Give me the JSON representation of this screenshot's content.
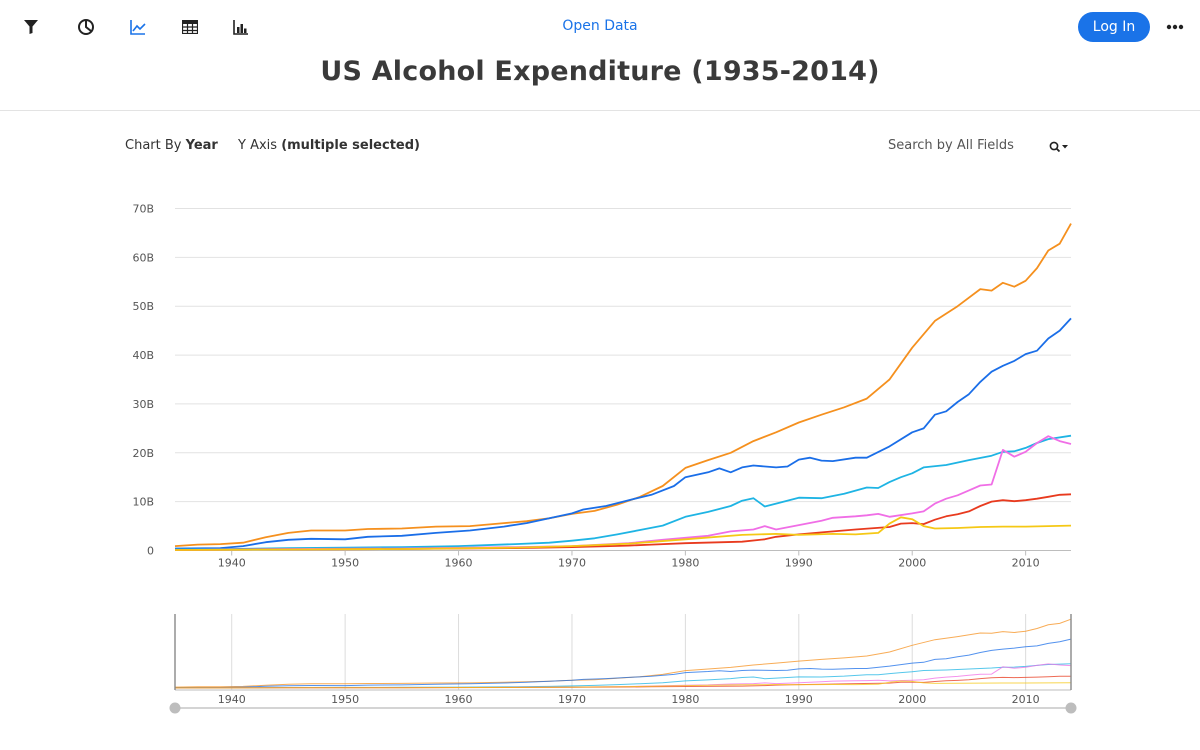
{
  "header": {
    "open_data_label": "Open Data",
    "login_label": "Log In",
    "title": "US Alcohol Expenditure (1935-2014)"
  },
  "toolbar": {
    "icons": [
      "filter-icon",
      "pie-chart-icon",
      "line-chart-icon",
      "table-icon",
      "bar-chart-icon"
    ],
    "active": "line-chart-icon",
    "accent": "#1a73e8"
  },
  "controls": {
    "chart_by_prefix": "Chart By",
    "chart_by_value": "Year",
    "y_axis_prefix": "Y Axis",
    "y_axis_value": "(multiple selected)",
    "search_placeholder": "Search by All Fields"
  },
  "chart_data": {
    "type": "line",
    "title": "US Alcohol Expenditure (1935-2014)",
    "xlabel": "",
    "ylabel": "",
    "x_ticks": [
      1940,
      1950,
      1960,
      1970,
      1980,
      1990,
      2000,
      2010
    ],
    "y_ticks": [
      "0",
      "10B",
      "20B",
      "30B",
      "40B",
      "50B",
      "60B",
      "70B"
    ],
    "xlim": [
      1935,
      2014
    ],
    "ylim": [
      0,
      70
    ],
    "y_unit": "billions",
    "grid": "horizontal",
    "legend": "none",
    "series": [
      {
        "color": "#f5901e",
        "points": [
          [
            1935,
            0.9
          ],
          [
            1937,
            1.2
          ],
          [
            1939,
            1.3
          ],
          [
            1941,
            1.6
          ],
          [
            1943,
            2.7
          ],
          [
            1945,
            3.6
          ],
          [
            1947,
            4.1
          ],
          [
            1950,
            4.1
          ],
          [
            1952,
            4.4
          ],
          [
            1955,
            4.5
          ],
          [
            1958,
            4.9
          ],
          [
            1961,
            5.0
          ],
          [
            1964,
            5.6
          ],
          [
            1966,
            6.0
          ],
          [
            1968,
            6.6
          ],
          [
            1970,
            7.5
          ],
          [
            1972,
            8.1
          ],
          [
            1974,
            9.4
          ],
          [
            1976,
            11.0
          ],
          [
            1978,
            13.2
          ],
          [
            1980,
            16.9
          ],
          [
            1982,
            18.5
          ],
          [
            1984,
            20.0
          ],
          [
            1986,
            22.4
          ],
          [
            1988,
            24.2
          ],
          [
            1990,
            26.2
          ],
          [
            1992,
            27.8
          ],
          [
            1994,
            29.3
          ],
          [
            1996,
            31.1
          ],
          [
            1998,
            35.0
          ],
          [
            2000,
            41.5
          ],
          [
            2002,
            47.0
          ],
          [
            2004,
            50.0
          ],
          [
            2006,
            53.5
          ],
          [
            2007,
            53.2
          ],
          [
            2008,
            54.8
          ],
          [
            2009,
            54.0
          ],
          [
            2010,
            55.2
          ],
          [
            2011,
            57.8
          ],
          [
            2012,
            61.4
          ],
          [
            2013,
            62.8
          ],
          [
            2014,
            66.9
          ]
        ]
      },
      {
        "color": "#1a6ee8",
        "points": [
          [
            1935,
            0.4
          ],
          [
            1939,
            0.5
          ],
          [
            1941,
            0.9
          ],
          [
            1943,
            1.7
          ],
          [
            1945,
            2.2
          ],
          [
            1947,
            2.4
          ],
          [
            1950,
            2.3
          ],
          [
            1952,
            2.8
          ],
          [
            1955,
            3.0
          ],
          [
            1958,
            3.6
          ],
          [
            1961,
            4.1
          ],
          [
            1964,
            4.9
          ],
          [
            1966,
            5.6
          ],
          [
            1968,
            6.6
          ],
          [
            1970,
            7.6
          ],
          [
            1971,
            8.4
          ],
          [
            1973,
            9.1
          ],
          [
            1975,
            10.3
          ],
          [
            1977,
            11.4
          ],
          [
            1979,
            13.2
          ],
          [
            1980,
            15.0
          ],
          [
            1982,
            16.0
          ],
          [
            1983,
            16.8
          ],
          [
            1984,
            16.0
          ],
          [
            1985,
            17.0
          ],
          [
            1986,
            17.4
          ],
          [
            1988,
            17.0
          ],
          [
            1989,
            17.2
          ],
          [
            1990,
            18.6
          ],
          [
            1991,
            19.0
          ],
          [
            1992,
            18.4
          ],
          [
            1993,
            18.3
          ],
          [
            1995,
            19.0
          ],
          [
            1996,
            19.0
          ],
          [
            1998,
            21.3
          ],
          [
            2000,
            24.2
          ],
          [
            2001,
            25.0
          ],
          [
            2002,
            27.8
          ],
          [
            2003,
            28.5
          ],
          [
            2004,
            30.4
          ],
          [
            2005,
            32.0
          ],
          [
            2006,
            34.5
          ],
          [
            2007,
            36.6
          ],
          [
            2008,
            37.8
          ],
          [
            2009,
            38.8
          ],
          [
            2010,
            40.2
          ],
          [
            2011,
            40.9
          ],
          [
            2012,
            43.4
          ],
          [
            2013,
            45.0
          ],
          [
            2014,
            47.5
          ]
        ]
      },
      {
        "color": "#1eb4e4",
        "points": [
          [
            1935,
            0.2
          ],
          [
            1940,
            0.3
          ],
          [
            1945,
            0.5
          ],
          [
            1950,
            0.6
          ],
          [
            1955,
            0.7
          ],
          [
            1960,
            0.9
          ],
          [
            1965,
            1.3
          ],
          [
            1968,
            1.6
          ],
          [
            1970,
            2.0
          ],
          [
            1972,
            2.5
          ],
          [
            1974,
            3.3
          ],
          [
            1976,
            4.2
          ],
          [
            1978,
            5.1
          ],
          [
            1980,
            6.9
          ],
          [
            1982,
            7.9
          ],
          [
            1984,
            9.1
          ],
          [
            1985,
            10.2
          ],
          [
            1986,
            10.7
          ],
          [
            1987,
            9.0
          ],
          [
            1988,
            9.6
          ],
          [
            1990,
            10.8
          ],
          [
            1992,
            10.7
          ],
          [
            1994,
            11.6
          ],
          [
            1996,
            12.9
          ],
          [
            1997,
            12.8
          ],
          [
            1998,
            14.0
          ],
          [
            1999,
            15.0
          ],
          [
            2000,
            15.8
          ],
          [
            2001,
            17.0
          ],
          [
            2003,
            17.5
          ],
          [
            2005,
            18.5
          ],
          [
            2007,
            19.4
          ],
          [
            2008,
            20.2
          ],
          [
            2009,
            20.3
          ],
          [
            2010,
            21.0
          ],
          [
            2011,
            22.0
          ],
          [
            2012,
            22.8
          ],
          [
            2014,
            23.5
          ]
        ]
      },
      {
        "color": "#f06ee6",
        "points": [
          [
            1935,
            0.1
          ],
          [
            1945,
            0.3
          ],
          [
            1955,
            0.4
          ],
          [
            1965,
            0.7
          ],
          [
            1970,
            0.9
          ],
          [
            1975,
            1.5
          ],
          [
            1978,
            2.2
          ],
          [
            1980,
            2.6
          ],
          [
            1982,
            3.0
          ],
          [
            1984,
            3.9
          ],
          [
            1986,
            4.3
          ],
          [
            1987,
            5.0
          ],
          [
            1988,
            4.3
          ],
          [
            1990,
            5.2
          ],
          [
            1992,
            6.1
          ],
          [
            1993,
            6.7
          ],
          [
            1995,
            7.0
          ],
          [
            1996,
            7.2
          ],
          [
            1997,
            7.5
          ],
          [
            1998,
            6.9
          ],
          [
            2000,
            7.6
          ],
          [
            2001,
            8.0
          ],
          [
            2002,
            9.6
          ],
          [
            2003,
            10.6
          ],
          [
            2004,
            11.3
          ],
          [
            2005,
            12.3
          ],
          [
            2006,
            13.3
          ],
          [
            2007,
            13.5
          ],
          [
            2008,
            20.6
          ],
          [
            2009,
            19.2
          ],
          [
            2010,
            20.2
          ],
          [
            2011,
            22.0
          ],
          [
            2012,
            23.4
          ],
          [
            2013,
            22.4
          ],
          [
            2014,
            21.8
          ]
        ]
      },
      {
        "color": "#e83a1e",
        "points": [
          [
            1935,
            0.1
          ],
          [
            1945,
            0.2
          ],
          [
            1955,
            0.3
          ],
          [
            1965,
            0.5
          ],
          [
            1970,
            0.7
          ],
          [
            1975,
            1.0
          ],
          [
            1977,
            1.2
          ],
          [
            1980,
            1.5
          ],
          [
            1985,
            1.8
          ],
          [
            1987,
            2.3
          ],
          [
            1988,
            2.8
          ],
          [
            1990,
            3.3
          ],
          [
            1992,
            3.7
          ],
          [
            1995,
            4.3
          ],
          [
            1998,
            4.8
          ],
          [
            1999,
            5.5
          ],
          [
            2000,
            5.6
          ],
          [
            2001,
            5.4
          ],
          [
            2002,
            6.3
          ],
          [
            2003,
            7.0
          ],
          [
            2004,
            7.4
          ],
          [
            2005,
            8.0
          ],
          [
            2006,
            9.1
          ],
          [
            2007,
            10.0
          ],
          [
            2008,
            10.3
          ],
          [
            2009,
            10.1
          ],
          [
            2010,
            10.3
          ],
          [
            2011,
            10.6
          ],
          [
            2012,
            11.0
          ],
          [
            2013,
            11.4
          ],
          [
            2014,
            11.5
          ]
        ]
      },
      {
        "color": "#f5c815",
        "points": [
          [
            1935,
            0.1
          ],
          [
            1945,
            0.2
          ],
          [
            1955,
            0.3
          ],
          [
            1965,
            0.6
          ],
          [
            1970,
            0.9
          ],
          [
            1975,
            1.4
          ],
          [
            1980,
            2.3
          ],
          [
            1985,
            3.2
          ],
          [
            1988,
            3.4
          ],
          [
            1990,
            3.2
          ],
          [
            1993,
            3.4
          ],
          [
            1995,
            3.3
          ],
          [
            1997,
            3.6
          ],
          [
            1998,
            5.5
          ],
          [
            1999,
            6.8
          ],
          [
            2000,
            6.4
          ],
          [
            2001,
            5.0
          ],
          [
            2002,
            4.5
          ],
          [
            2004,
            4.6
          ],
          [
            2006,
            4.8
          ],
          [
            2008,
            4.9
          ],
          [
            2010,
            4.9
          ],
          [
            2012,
            5.0
          ],
          [
            2014,
            5.1
          ]
        ]
      }
    ],
    "navigator": {
      "x_ticks": [
        1940,
        1950,
        1960,
        1970,
        1980,
        1990,
        2000,
        2010
      ],
      "range": [
        1935,
        2014
      ]
    }
  }
}
